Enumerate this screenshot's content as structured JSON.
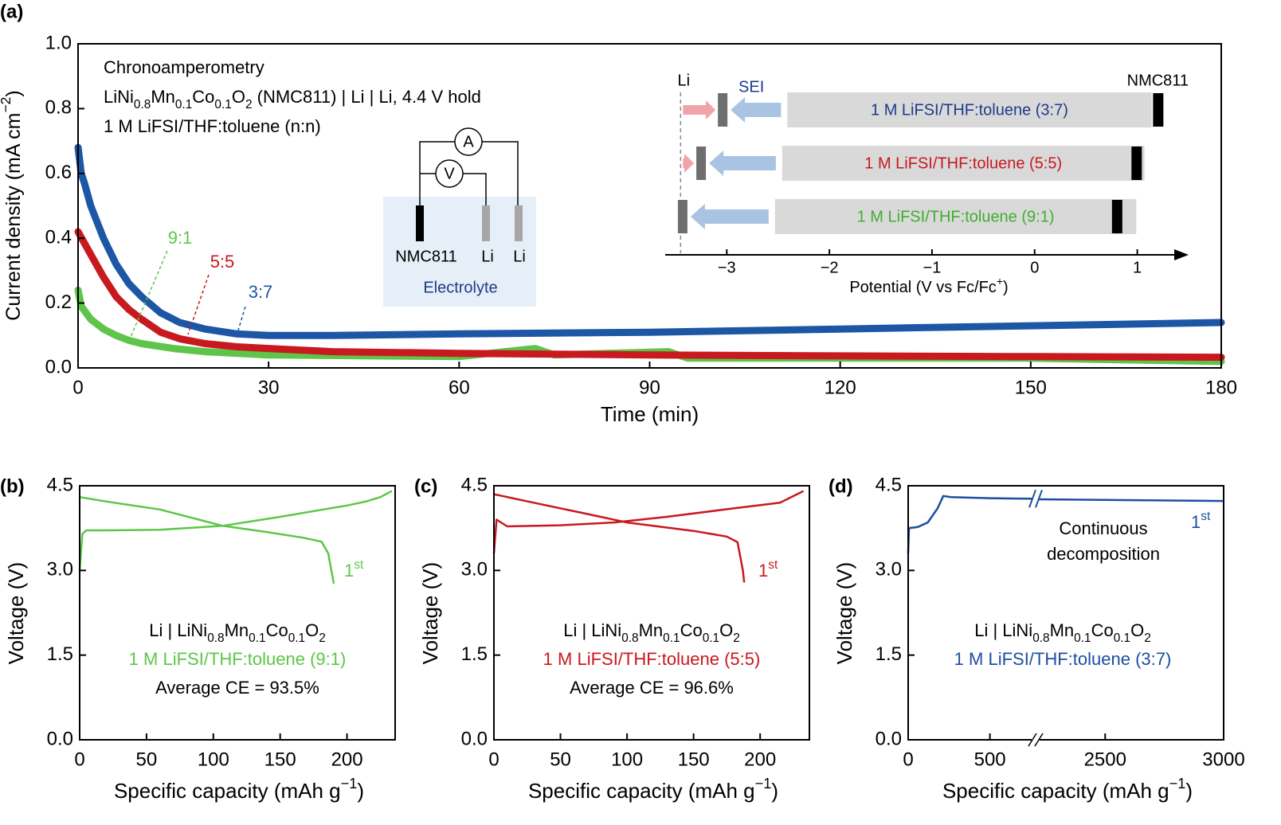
{
  "chart_data": [
    {
      "type": "line",
      "label": "(a)",
      "xlabel": "Time (min)",
      "ylabel": [
        "Current density (mA cm",
        "−2",
        ")"
      ],
      "xlim": [
        0,
        180
      ],
      "xticks": [
        0,
        30,
        60,
        90,
        120,
        150,
        180
      ],
      "ylim": [
        0,
        1
      ],
      "yticks": [
        {
          "value": 0,
          "label": "0.0"
        },
        0.2,
        0.4,
        0.6,
        0.8,
        {
          "value": 1,
          "label": "1.0"
        }
      ],
      "annotations": [
        [
          "Chronoamperometry"
        ],
        [
          "LiNi",
          "0.8",
          "Mn",
          "0.1",
          "Co",
          "0.1",
          "O",
          "2",
          " (NMC811) | Li | Li, 4.4 V hold"
        ],
        [
          "1 M LiFSI/THF:toluene (n:n)"
        ]
      ],
      "series": [
        {
          "name": "3:7",
          "color": "#1d56a5",
          "x": [
            0,
            0.5,
            1,
            2,
            4,
            6,
            8,
            10,
            13,
            16,
            20,
            25,
            30,
            40,
            60,
            90,
            120,
            150,
            180
          ],
          "values": [
            0.68,
            0.6,
            0.57,
            0.5,
            0.4,
            0.32,
            0.26,
            0.22,
            0.17,
            0.14,
            0.12,
            0.105,
            0.1,
            0.1,
            0.105,
            0.11,
            0.12,
            0.13,
            0.14
          ]
        },
        {
          "name": "5:5",
          "color": "#c8191f",
          "x": [
            0,
            2,
            4,
            6,
            8,
            10,
            13,
            16,
            20,
            25,
            30,
            40,
            60,
            90,
            120,
            150,
            180
          ],
          "values": [
            0.42,
            0.35,
            0.28,
            0.22,
            0.18,
            0.15,
            0.11,
            0.09,
            0.075,
            0.065,
            0.06,
            0.05,
            0.045,
            0.04,
            0.037,
            0.035,
            0.033
          ]
        },
        {
          "name": "9:1",
          "color": "#5ec44a",
          "x": [
            0,
            0.5,
            2,
            4,
            6,
            8,
            10,
            15,
            20,
            30,
            60,
            72,
            75,
            93,
            96,
            120,
            150,
            180
          ],
          "values": [
            0.24,
            0.19,
            0.15,
            0.12,
            0.1,
            0.085,
            0.075,
            0.06,
            0.05,
            0.04,
            0.035,
            0.06,
            0.04,
            0.05,
            0.03,
            0.03,
            0.03,
            0.02
          ]
        }
      ],
      "circuit": {
        "ammeter": "A",
        "voltmeter": "V",
        "electrodes": [
          "NMC811",
          "Li",
          "Li"
        ],
        "electrolyte": "Electrolyte"
      }
    },
    {
      "type": "range",
      "xlabel": [
        "Potential (V vs Fc/Fc",
        "+",
        ")"
      ],
      "xlim": [
        -3.6,
        1.5
      ],
      "xticks": [
        {
          "value": -3,
          "label": "−3"
        },
        {
          "value": -2,
          "label": "−2"
        },
        {
          "value": -1,
          "label": "−1"
        },
        0,
        1
      ],
      "li_label": "Li",
      "li": -3.45,
      "sei_label": "SEI",
      "cathode_label": "NMC811",
      "bars": [
        {
          "label": "1 M LiFSI/THF:toluene (3:7)",
          "color": "#1f3a8a",
          "range": [
            -2.41,
            1.14
          ],
          "cathode": 1.2,
          "sei": -3.04
        },
        {
          "label": "1 M LiFSI/THF:toluene (5:5)",
          "color": "#c8191f",
          "range": [
            -2.46,
            1.07
          ],
          "cathode": 0.99,
          "sei": -3.25
        },
        {
          "label": "1 M LiFSI/THF:toluene (9:1)",
          "color": "#3fae2f",
          "range": [
            -2.53,
            0.99
          ],
          "cathode": 0.8,
          "sei": -3.43
        }
      ]
    },
    {
      "type": "line",
      "label": "(b)",
      "xlabel": [
        "Specific capacity (mAh g",
        "−1",
        ")"
      ],
      "ylabel": "Voltage (V)",
      "xlim": [
        0,
        236
      ],
      "xticks": [
        0,
        50,
        100,
        150,
        200
      ],
      "ylim": [
        0,
        4.5
      ],
      "yticks": [
        {
          "value": 0,
          "label": "0.0"
        },
        1.5,
        {
          "value": 3,
          "label": "3.0"
        },
        4.5
      ],
      "color": "#5cc747",
      "cycle_label": [
        "1",
        "st"
      ],
      "annotations": [
        [
          "Li | LiNi",
          "0.8",
          "Mn",
          "0.1",
          "Co",
          "0.1",
          "O",
          "2"
        ],
        [
          "1 M LiFSI/THF:toluene (9:1)"
        ],
        [
          "Average CE = 93.5%"
        ]
      ],
      "series": [
        {
          "x": [
            0,
            2,
            5,
            20,
            60,
            107,
            150,
            200,
            214,
            225,
            233
          ],
          "values": [
            3.0,
            3.65,
            3.71,
            3.71,
            3.72,
            3.79,
            3.95,
            4.15,
            4.22,
            4.3,
            4.4
          ]
        },
        {
          "x": [
            0,
            20,
            60,
            107,
            140,
            167,
            181,
            186,
            190
          ],
          "values": [
            4.3,
            4.22,
            4.08,
            3.79,
            3.68,
            3.58,
            3.51,
            3.3,
            2.78
          ]
        }
      ]
    },
    {
      "type": "line",
      "label": "(c)",
      "xlabel": [
        "Specific capacity (mAh g",
        "−1",
        ")"
      ],
      "ylabel": "Voltage (V)",
      "xlim": [
        0,
        237
      ],
      "xticks": [
        0,
        50,
        100,
        150,
        200
      ],
      "ylim": [
        0,
        4.5
      ],
      "yticks": [
        {
          "value": 0,
          "label": "0.0"
        },
        1.5,
        {
          "value": 3,
          "label": "3.0"
        },
        4.5
      ],
      "color": "#c8191f",
      "cycle_label": [
        "1",
        "st"
      ],
      "annotations": [
        [
          "Li | LiNi",
          "0.8",
          "Mn",
          "0.1",
          "Co",
          "0.1",
          "O",
          "2"
        ],
        [
          "1 M LiFSI/THF:toluene (5:5)"
        ],
        [
          "Average CE = 96.6%"
        ]
      ],
      "series": [
        {
          "x": [
            0,
            2,
            10,
            50,
            90,
            130,
            180,
            215,
            232
          ],
          "values": [
            3.3,
            3.9,
            3.78,
            3.8,
            3.85,
            3.95,
            4.1,
            4.2,
            4.4
          ]
        },
        {
          "x": [
            0,
            30,
            70,
            100,
            150,
            175,
            183,
            187,
            188
          ],
          "values": [
            4.35,
            4.2,
            4.0,
            3.85,
            3.7,
            3.6,
            3.5,
            3.0,
            2.8
          ]
        }
      ]
    },
    {
      "type": "line",
      "label": "(d)",
      "xlabel": [
        "Specific capacity (mAh g",
        "−1",
        ")"
      ],
      "ylabel": "Voltage (V)",
      "xlim": [
        [
          0,
          760
        ],
        [
          2220,
          3000
        ]
      ],
      "xticks": [
        0,
        500,
        2500,
        3000
      ],
      "ylim": [
        0,
        4.5
      ],
      "yticks": [
        {
          "value": 0,
          "label": "0.0"
        },
        1.5,
        {
          "value": 3,
          "label": "3.0"
        },
        4.5
      ],
      "color": "#1d4ea0",
      "cycle_label": [
        "1",
        "st"
      ],
      "annotations": [
        [
          "Li | LiNi",
          "0.8",
          "Mn",
          "0.1",
          "Co",
          "0.1",
          "O",
          "2"
        ],
        [
          "1 M LiFSI/THF:toluene (3:7)"
        ]
      ],
      "note": [
        "Continuous",
        "decomposition"
      ],
      "series": [
        {
          "x": [
            0,
            5,
            60,
            120,
            180,
            215,
            260,
            500,
            760,
            null,
            2220,
            3000
          ],
          "values": [
            3.3,
            3.75,
            3.77,
            3.85,
            4.1,
            4.32,
            4.3,
            4.28,
            4.27,
            null,
            4.26,
            4.23
          ]
        }
      ]
    }
  ]
}
